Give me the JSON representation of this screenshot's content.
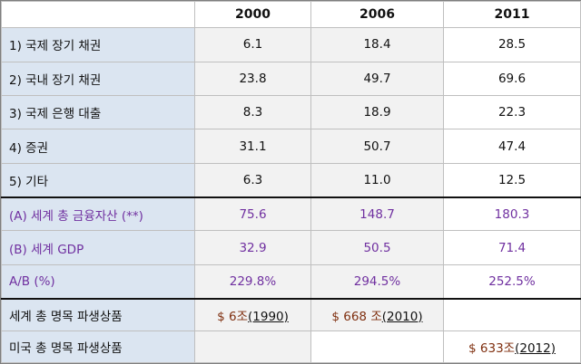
{
  "header": {
    "blank": "",
    "years": [
      "2000",
      "2006",
      "2011"
    ]
  },
  "rows": [
    {
      "label": "1) 국제 장기 채권",
      "values": [
        "6.1",
        "18.4",
        "28.5"
      ]
    },
    {
      "label": "2) 국내 장기 채권",
      "values": [
        "23.8",
        "49.7",
        "69.6"
      ]
    },
    {
      "label": "3) 국제 은행 대출",
      "values": [
        "8.3",
        "18.9",
        "22.3"
      ]
    },
    {
      "label": "4) 증권",
      "values": [
        "31.1",
        "50.7",
        "47.4"
      ]
    },
    {
      "label": "5) 기타",
      "values": [
        "6.3",
        "11.0",
        "12.5"
      ]
    }
  ],
  "totals": [
    {
      "label": "(A) 세계 총 금융자산 (**)",
      "values": [
        "75.6",
        "148.7",
        "180.3"
      ]
    },
    {
      "label": "(B) 세계 GDP",
      "values": [
        "32.9",
        "50.5",
        "71.4"
      ]
    },
    {
      "label": "A/B (%)",
      "values": [
        "229.8%",
        "294.5%",
        "252.5%"
      ]
    }
  ],
  "derivatives": [
    {
      "label": "세계 총 명목 파생상품",
      "cells": [
        {
          "amount": "$ 6조",
          "year": "(1990)"
        },
        {
          "amount": "$ 668 조",
          "year": "(2010)"
        },
        {
          "amount": "",
          "year": ""
        }
      ]
    },
    {
      "label": "미국 총 명목 파생상품",
      "cells": [
        {
          "amount": "",
          "year": ""
        },
        {
          "amount": "",
          "year": ""
        },
        {
          "amount": "$ 633조",
          "year": "(2012)"
        }
      ]
    }
  ],
  "colors": {
    "label_bg": "#dbe5f1",
    "value_bg": "#f2f2f2",
    "accent_purple": "#7030a0",
    "amount_brown": "#7f2f0f"
  }
}
